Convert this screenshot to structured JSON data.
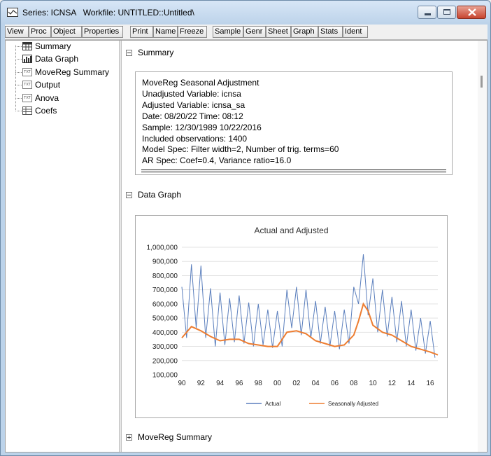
{
  "window": {
    "title": "Series: ICNSA   Workfile: UNTITLED::Untitled\\"
  },
  "toolbar": {
    "buttons": [
      "View",
      "Proc",
      "Object",
      "Properties",
      "Print",
      "Name",
      "Freeze",
      "Sample",
      "Genr",
      "Sheet",
      "Graph",
      "Stats",
      "Ident"
    ]
  },
  "tree": {
    "items": [
      {
        "label": "Summary",
        "icon": "table-icon"
      },
      {
        "label": "Data Graph",
        "icon": "graph-icon"
      },
      {
        "label": "MoveReg Summary",
        "icon": "text-icon"
      },
      {
        "label": "Output",
        "icon": "text-icon"
      },
      {
        "label": "Anova",
        "icon": "text-icon"
      },
      {
        "label": "Coefs",
        "icon": "table-icon"
      }
    ]
  },
  "sections": {
    "summary": "Summary",
    "data_graph": "Data Graph",
    "movereg_summary": "MoveReg Summary"
  },
  "summary": {
    "lines": [
      "MoveReg Seasonal Adjustment",
      "Unadjusted Variable: icnsa",
      "Adjusted Variable: icnsa_sa",
      "Date: 08/20/22   Time: 08:12",
      "Sample: 12/30/1989 10/22/2016",
      "Included observations: 1400",
      "Model Spec: Filter width=2, Number of trig. terms=60",
      "AR Spec: Coef=0.4, Variance ratio=16.0"
    ]
  },
  "chart_data": {
    "type": "line",
    "title": "Actual and Adjusted",
    "xlabel": "",
    "ylabel": "",
    "ylim": [
      100000,
      1000000
    ],
    "yticks": [
      "1,000,000",
      "900,000",
      "800,000",
      "700,000",
      "600,000",
      "500,000",
      "400,000",
      "300,000",
      "200,000",
      "100,000"
    ],
    "xticks": [
      "90",
      "92",
      "94",
      "96",
      "98",
      "00",
      "02",
      "04",
      "06",
      "08",
      "10",
      "12",
      "14",
      "16"
    ],
    "x_range": [
      1990,
      2016.8
    ],
    "grid": true,
    "legend_position": "bottom",
    "colors": {
      "actual": "#5b7fbd",
      "adjusted": "#ed7d31"
    },
    "series": [
      {
        "name": "Actual",
        "x": [
          1990,
          1990.5,
          1991,
          1991.5,
          1992,
          1992.5,
          1993,
          1993.5,
          1994,
          1994.5,
          1995,
          1995.5,
          1996,
          1996.5,
          1997,
          1997.5,
          1998,
          1998.5,
          1999,
          1999.5,
          2000,
          2000.5,
          2001,
          2001.5,
          2002,
          2002.5,
          2003,
          2003.5,
          2004,
          2004.5,
          2005,
          2005.5,
          2006,
          2006.5,
          2007,
          2007.5,
          2008,
          2008.5,
          2009,
          2009.5,
          2010,
          2010.5,
          2011,
          2011.5,
          2012,
          2012.5,
          2013,
          2013.5,
          2014,
          2014.5,
          2015,
          2015.5,
          2016,
          2016.5
        ],
        "values": [
          720000,
          360000,
          880000,
          430000,
          870000,
          360000,
          710000,
          300000,
          680000,
          310000,
          640000,
          330000,
          660000,
          320000,
          610000,
          300000,
          600000,
          310000,
          560000,
          290000,
          550000,
          300000,
          700000,
          430000,
          720000,
          380000,
          700000,
          360000,
          620000,
          320000,
          580000,
          300000,
          550000,
          280000,
          560000,
          320000,
          720000,
          600000,
          950000,
          520000,
          780000,
          400000,
          700000,
          370000,
          650000,
          330000,
          620000,
          300000,
          560000,
          270000,
          500000,
          250000,
          480000,
          220000
        ]
      },
      {
        "name": "Seasonally Adjusted",
        "x": [
          1990,
          1991,
          1992,
          1993,
          1994,
          1995,
          1996,
          1997,
          1998,
          1999,
          2000,
          2001,
          2002,
          2003,
          2004,
          2005,
          2006,
          2007,
          2008,
          2008.5,
          2009,
          2009.5,
          2010,
          2011,
          2012,
          2013,
          2014,
          2015,
          2016,
          2016.8
        ],
        "values": [
          360000,
          440000,
          410000,
          370000,
          340000,
          350000,
          350000,
          320000,
          310000,
          300000,
          300000,
          400000,
          410000,
          390000,
          340000,
          320000,
          300000,
          310000,
          380000,
          480000,
          600000,
          550000,
          450000,
          400000,
          380000,
          340000,
          300000,
          280000,
          260000,
          240000
        ]
      }
    ]
  }
}
